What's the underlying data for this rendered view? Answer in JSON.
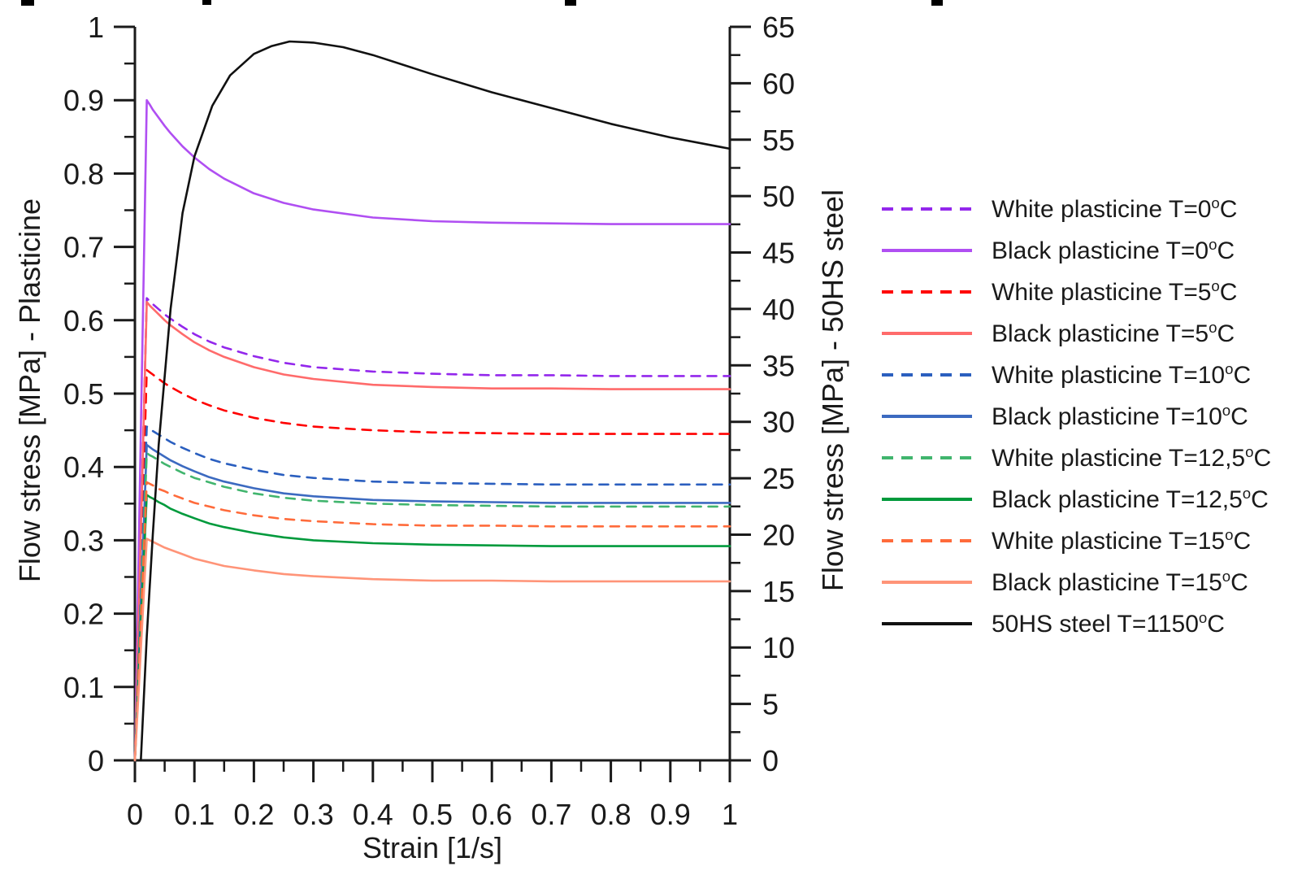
{
  "figure": {
    "x_axis": {
      "title": "Strain [1/s]",
      "tick_labels": [
        "0",
        "0.1",
        "0.2",
        "0.3",
        "0.4",
        "0.5",
        "0.6",
        "0.7",
        "0.8",
        "0.9",
        "1"
      ]
    },
    "left_axis": {
      "title": "Flow stress [MPa] - Plasticine",
      "tick_labels": [
        "0",
        "0.1",
        "0.2",
        "0.3",
        "0.4",
        "0.5",
        "0.6",
        "0.7",
        "0.8",
        "0.9",
        "1"
      ]
    },
    "right_axis": {
      "title": "Flow stress [MPa] - 50HS steel",
      "tick_labels": [
        "0",
        "5",
        "10",
        "15",
        "20",
        "25",
        "30",
        "35",
        "40",
        "45",
        "50",
        "55",
        "60",
        "65"
      ]
    }
  },
  "chart_data": {
    "type": "line",
    "title": "",
    "xlabel": "Strain [1/s]",
    "ylabel_left": "Flow stress [MPa] - Plasticine",
    "ylabel_right": "Flow stress [MPa] - 50HS steel",
    "xlim": [
      0,
      1
    ],
    "ylim_left": [
      0,
      1
    ],
    "ylim_right": [
      0,
      65
    ],
    "grid": false,
    "legend_position": "right",
    "axis_color": "#1a1a1a",
    "series": [
      {
        "name": "White plasticine T=0°C",
        "y_axis": "left",
        "color": "#9327EC",
        "line_style": "dashed",
        "x": [
          0,
          0.005,
          0.01,
          0.015,
          0.02,
          0.025,
          0.03,
          0.04,
          0.05,
          0.06,
          0.08,
          0.1,
          0.125,
          0.15,
          0.2,
          0.25,
          0.3,
          0.4,
          0.5,
          0.6,
          0.7,
          0.8,
          0.9,
          1.0
        ],
        "y": [
          0,
          0.158,
          0.315,
          0.473,
          0.63,
          0.626,
          0.622,
          0.615,
          0.608,
          0.602,
          0.591,
          0.581,
          0.571,
          0.563,
          0.551,
          0.542,
          0.536,
          0.53,
          0.527,
          0.525,
          0.525,
          0.524,
          0.524,
          0.524
        ]
      },
      {
        "name": "Black plasticine T=0°C",
        "y_axis": "left",
        "color": "#B04FF2",
        "line_style": "solid",
        "x": [
          0,
          0.005,
          0.01,
          0.015,
          0.02,
          0.025,
          0.03,
          0.04,
          0.05,
          0.06,
          0.08,
          0.1,
          0.125,
          0.15,
          0.2,
          0.25,
          0.3,
          0.4,
          0.5,
          0.6,
          0.7,
          0.8,
          0.9,
          1.0
        ],
        "y": [
          0,
          0.225,
          0.45,
          0.675,
          0.9,
          0.894,
          0.887,
          0.876,
          0.865,
          0.855,
          0.837,
          0.822,
          0.806,
          0.793,
          0.773,
          0.76,
          0.751,
          0.74,
          0.735,
          0.733,
          0.732,
          0.731,
          0.731,
          0.731
        ]
      },
      {
        "name": "White plasticine T=5°C",
        "y_axis": "left",
        "color": "#FF0000",
        "line_style": "dashed",
        "x": [
          0,
          0.005,
          0.01,
          0.015,
          0.02,
          0.025,
          0.03,
          0.04,
          0.05,
          0.06,
          0.08,
          0.1,
          0.125,
          0.15,
          0.2,
          0.25,
          0.3,
          0.4,
          0.5,
          0.6,
          0.7,
          0.8,
          0.9,
          1.0
        ],
        "y": [
          0,
          0.133,
          0.266,
          0.399,
          0.532,
          0.529,
          0.526,
          0.52,
          0.514,
          0.509,
          0.5,
          0.492,
          0.484,
          0.477,
          0.467,
          0.46,
          0.455,
          0.45,
          0.447,
          0.446,
          0.445,
          0.445,
          0.445,
          0.445
        ]
      },
      {
        "name": "Black plasticine T=5°C",
        "y_axis": "left",
        "color": "#FF6B6B",
        "line_style": "solid",
        "x": [
          0,
          0.005,
          0.01,
          0.015,
          0.02,
          0.025,
          0.03,
          0.04,
          0.05,
          0.06,
          0.08,
          0.1,
          0.125,
          0.15,
          0.2,
          0.25,
          0.3,
          0.4,
          0.5,
          0.6,
          0.7,
          0.8,
          0.9,
          1.0
        ],
        "y": [
          0,
          0.156,
          0.313,
          0.469,
          0.625,
          0.62,
          0.616,
          0.608,
          0.6,
          0.593,
          0.581,
          0.57,
          0.559,
          0.55,
          0.536,
          0.526,
          0.52,
          0.512,
          0.509,
          0.507,
          0.507,
          0.506,
          0.506,
          0.506
        ]
      },
      {
        "name": "White plasticine T=10°C",
        "y_axis": "left",
        "color": "#2B5FBF",
        "line_style": "dashed",
        "x": [
          0,
          0.005,
          0.01,
          0.015,
          0.02,
          0.025,
          0.03,
          0.04,
          0.05,
          0.06,
          0.08,
          0.1,
          0.125,
          0.15,
          0.2,
          0.25,
          0.3,
          0.4,
          0.5,
          0.6,
          0.7,
          0.8,
          0.9,
          1.0
        ],
        "y": [
          0,
          0.114,
          0.228,
          0.341,
          0.455,
          0.452,
          0.449,
          0.444,
          0.439,
          0.434,
          0.426,
          0.419,
          0.411,
          0.405,
          0.396,
          0.389,
          0.385,
          0.38,
          0.378,
          0.377,
          0.376,
          0.376,
          0.376,
          0.376
        ]
      },
      {
        "name": "Black plasticine T=10°C",
        "y_axis": "left",
        "color": "#3C6AC0",
        "line_style": "solid",
        "x": [
          0,
          0.005,
          0.01,
          0.015,
          0.02,
          0.025,
          0.03,
          0.04,
          0.05,
          0.06,
          0.08,
          0.1,
          0.125,
          0.15,
          0.2,
          0.25,
          0.3,
          0.4,
          0.5,
          0.6,
          0.7,
          0.8,
          0.9,
          1.0
        ],
        "y": [
          0,
          0.108,
          0.215,
          0.323,
          0.43,
          0.427,
          0.424,
          0.419,
          0.414,
          0.409,
          0.401,
          0.394,
          0.386,
          0.38,
          0.371,
          0.364,
          0.36,
          0.355,
          0.353,
          0.352,
          0.351,
          0.351,
          0.351,
          0.351
        ]
      },
      {
        "name": "White plasticine T=12,5°C",
        "y_axis": "left",
        "color": "#41B56E",
        "line_style": "dashed",
        "x": [
          0,
          0.005,
          0.01,
          0.015,
          0.02,
          0.025,
          0.03,
          0.04,
          0.05,
          0.06,
          0.08,
          0.1,
          0.125,
          0.15,
          0.2,
          0.25,
          0.3,
          0.4,
          0.5,
          0.6,
          0.7,
          0.8,
          0.9,
          1.0
        ],
        "y": [
          0,
          0.105,
          0.21,
          0.314,
          0.419,
          0.416,
          0.414,
          0.409,
          0.404,
          0.4,
          0.392,
          0.385,
          0.379,
          0.373,
          0.364,
          0.358,
          0.354,
          0.35,
          0.348,
          0.347,
          0.346,
          0.346,
          0.346,
          0.346
        ]
      },
      {
        "name": "Black plasticine T=12,5°C",
        "y_axis": "left",
        "color": "#009A3C",
        "line_style": "solid",
        "x": [
          0,
          0.005,
          0.01,
          0.015,
          0.02,
          0.025,
          0.03,
          0.04,
          0.05,
          0.06,
          0.08,
          0.1,
          0.125,
          0.15,
          0.2,
          0.25,
          0.3,
          0.4,
          0.5,
          0.6,
          0.7,
          0.8,
          0.9,
          1.0
        ],
        "y": [
          0,
          0.091,
          0.181,
          0.272,
          0.362,
          0.359,
          0.357,
          0.352,
          0.348,
          0.343,
          0.336,
          0.33,
          0.323,
          0.318,
          0.31,
          0.304,
          0.3,
          0.296,
          0.294,
          0.293,
          0.292,
          0.292,
          0.292,
          0.292
        ]
      },
      {
        "name": "White plasticine T=15°C",
        "y_axis": "left",
        "color": "#FF6B3B",
        "line_style": "dashed",
        "x": [
          0,
          0.005,
          0.01,
          0.015,
          0.02,
          0.025,
          0.03,
          0.04,
          0.05,
          0.06,
          0.08,
          0.1,
          0.125,
          0.15,
          0.2,
          0.25,
          0.3,
          0.4,
          0.5,
          0.6,
          0.7,
          0.8,
          0.9,
          1.0
        ],
        "y": [
          0,
          0.095,
          0.19,
          0.284,
          0.379,
          0.377,
          0.375,
          0.37,
          0.367,
          0.363,
          0.357,
          0.351,
          0.346,
          0.341,
          0.334,
          0.329,
          0.326,
          0.322,
          0.32,
          0.32,
          0.319,
          0.319,
          0.319,
          0.319
        ]
      },
      {
        "name": "Black plasticine T=15°C",
        "y_axis": "left",
        "color": "#FF9478",
        "line_style": "solid",
        "x": [
          0,
          0.005,
          0.01,
          0.015,
          0.02,
          0.025,
          0.03,
          0.04,
          0.05,
          0.06,
          0.08,
          0.1,
          0.125,
          0.15,
          0.2,
          0.25,
          0.3,
          0.4,
          0.5,
          0.6,
          0.7,
          0.8,
          0.9,
          1.0
        ],
        "y": [
          0,
          0.076,
          0.151,
          0.227,
          0.302,
          0.3,
          0.298,
          0.294,
          0.29,
          0.287,
          0.281,
          0.275,
          0.27,
          0.265,
          0.259,
          0.254,
          0.251,
          0.247,
          0.245,
          0.245,
          0.244,
          0.244,
          0.244,
          0.244
        ]
      },
      {
        "name": "50HS steel T=1150°C",
        "y_axis": "right",
        "color": "#111111",
        "line_style": "solid",
        "x": [
          0.01,
          0.02,
          0.03,
          0.04,
          0.06,
          0.08,
          0.1,
          0.13,
          0.16,
          0.2,
          0.23,
          0.26,
          0.3,
          0.35,
          0.4,
          0.5,
          0.6,
          0.7,
          0.8,
          0.9,
          1.0
        ],
        "y": [
          0,
          11,
          20,
          28,
          40,
          48.5,
          53.5,
          58,
          60.7,
          62.6,
          63.3,
          63.7,
          63.6,
          63.2,
          62.5,
          60.8,
          59.2,
          57.8,
          56.4,
          55.2,
          54.2
        ]
      }
    ]
  }
}
